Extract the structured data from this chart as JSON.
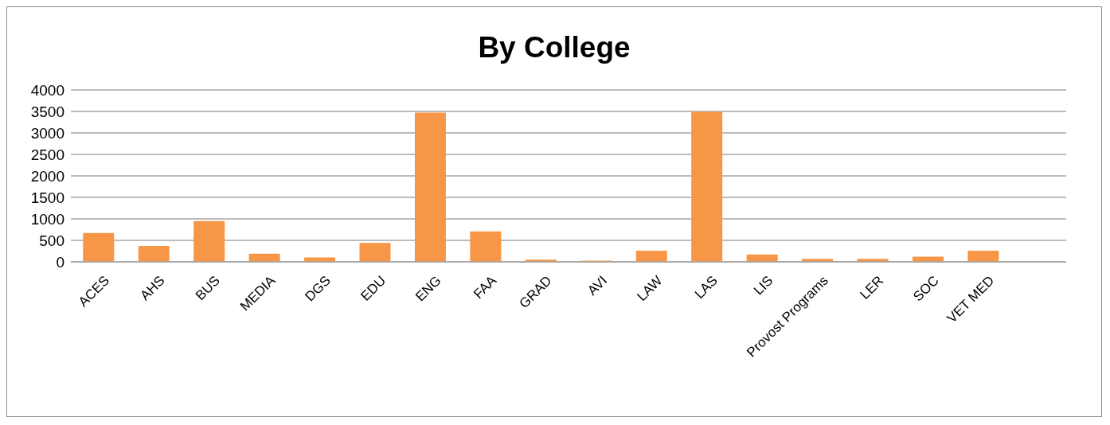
{
  "chart_data": {
    "type": "bar",
    "title": "By College",
    "categories": [
      "ACES",
      "AHS",
      "BUS",
      "MEDIA",
      "DGS",
      "EDU",
      "ENG",
      "FAA",
      "GRAD",
      "AVI",
      "LAW",
      "LAS",
      "LIS",
      "Provost Programs",
      "LER",
      "SOC",
      "VET MED",
      null
    ],
    "values": [
      670,
      370,
      950,
      190,
      100,
      440,
      3470,
      710,
      50,
      30,
      260,
      3490,
      170,
      70,
      70,
      120,
      260,
      null
    ],
    "color": "#f79646",
    "ylim": [
      0,
      4000
    ],
    "yticks": [
      0,
      500,
      1000,
      1500,
      2000,
      2500,
      3000,
      3500,
      4000
    ],
    "grid": "y",
    "legend": false
  }
}
